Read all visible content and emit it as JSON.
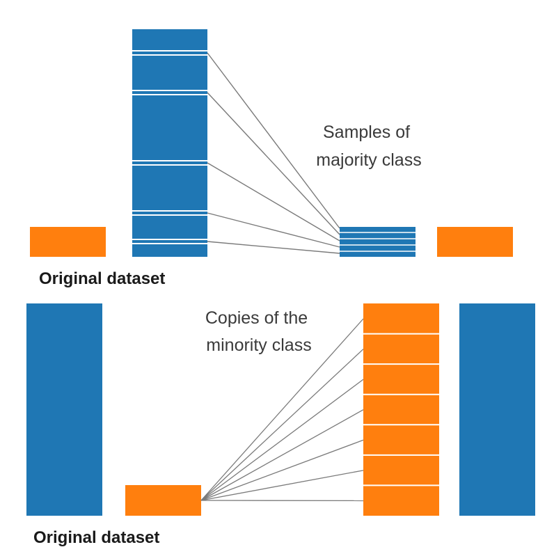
{
  "colors": {
    "majority": "#1f77b4",
    "minority": "#ff7f0e",
    "connector": "#7a7a7a",
    "divider": "#ffffff",
    "background": "#ffffff"
  },
  "undersampling": {
    "label": "Original dataset",
    "annotation": [
      "Samples of",
      "majority class"
    ]
  },
  "oversampling": {
    "label": "Original dataset",
    "annotation": [
      "Copies of the",
      "minority class"
    ]
  }
}
